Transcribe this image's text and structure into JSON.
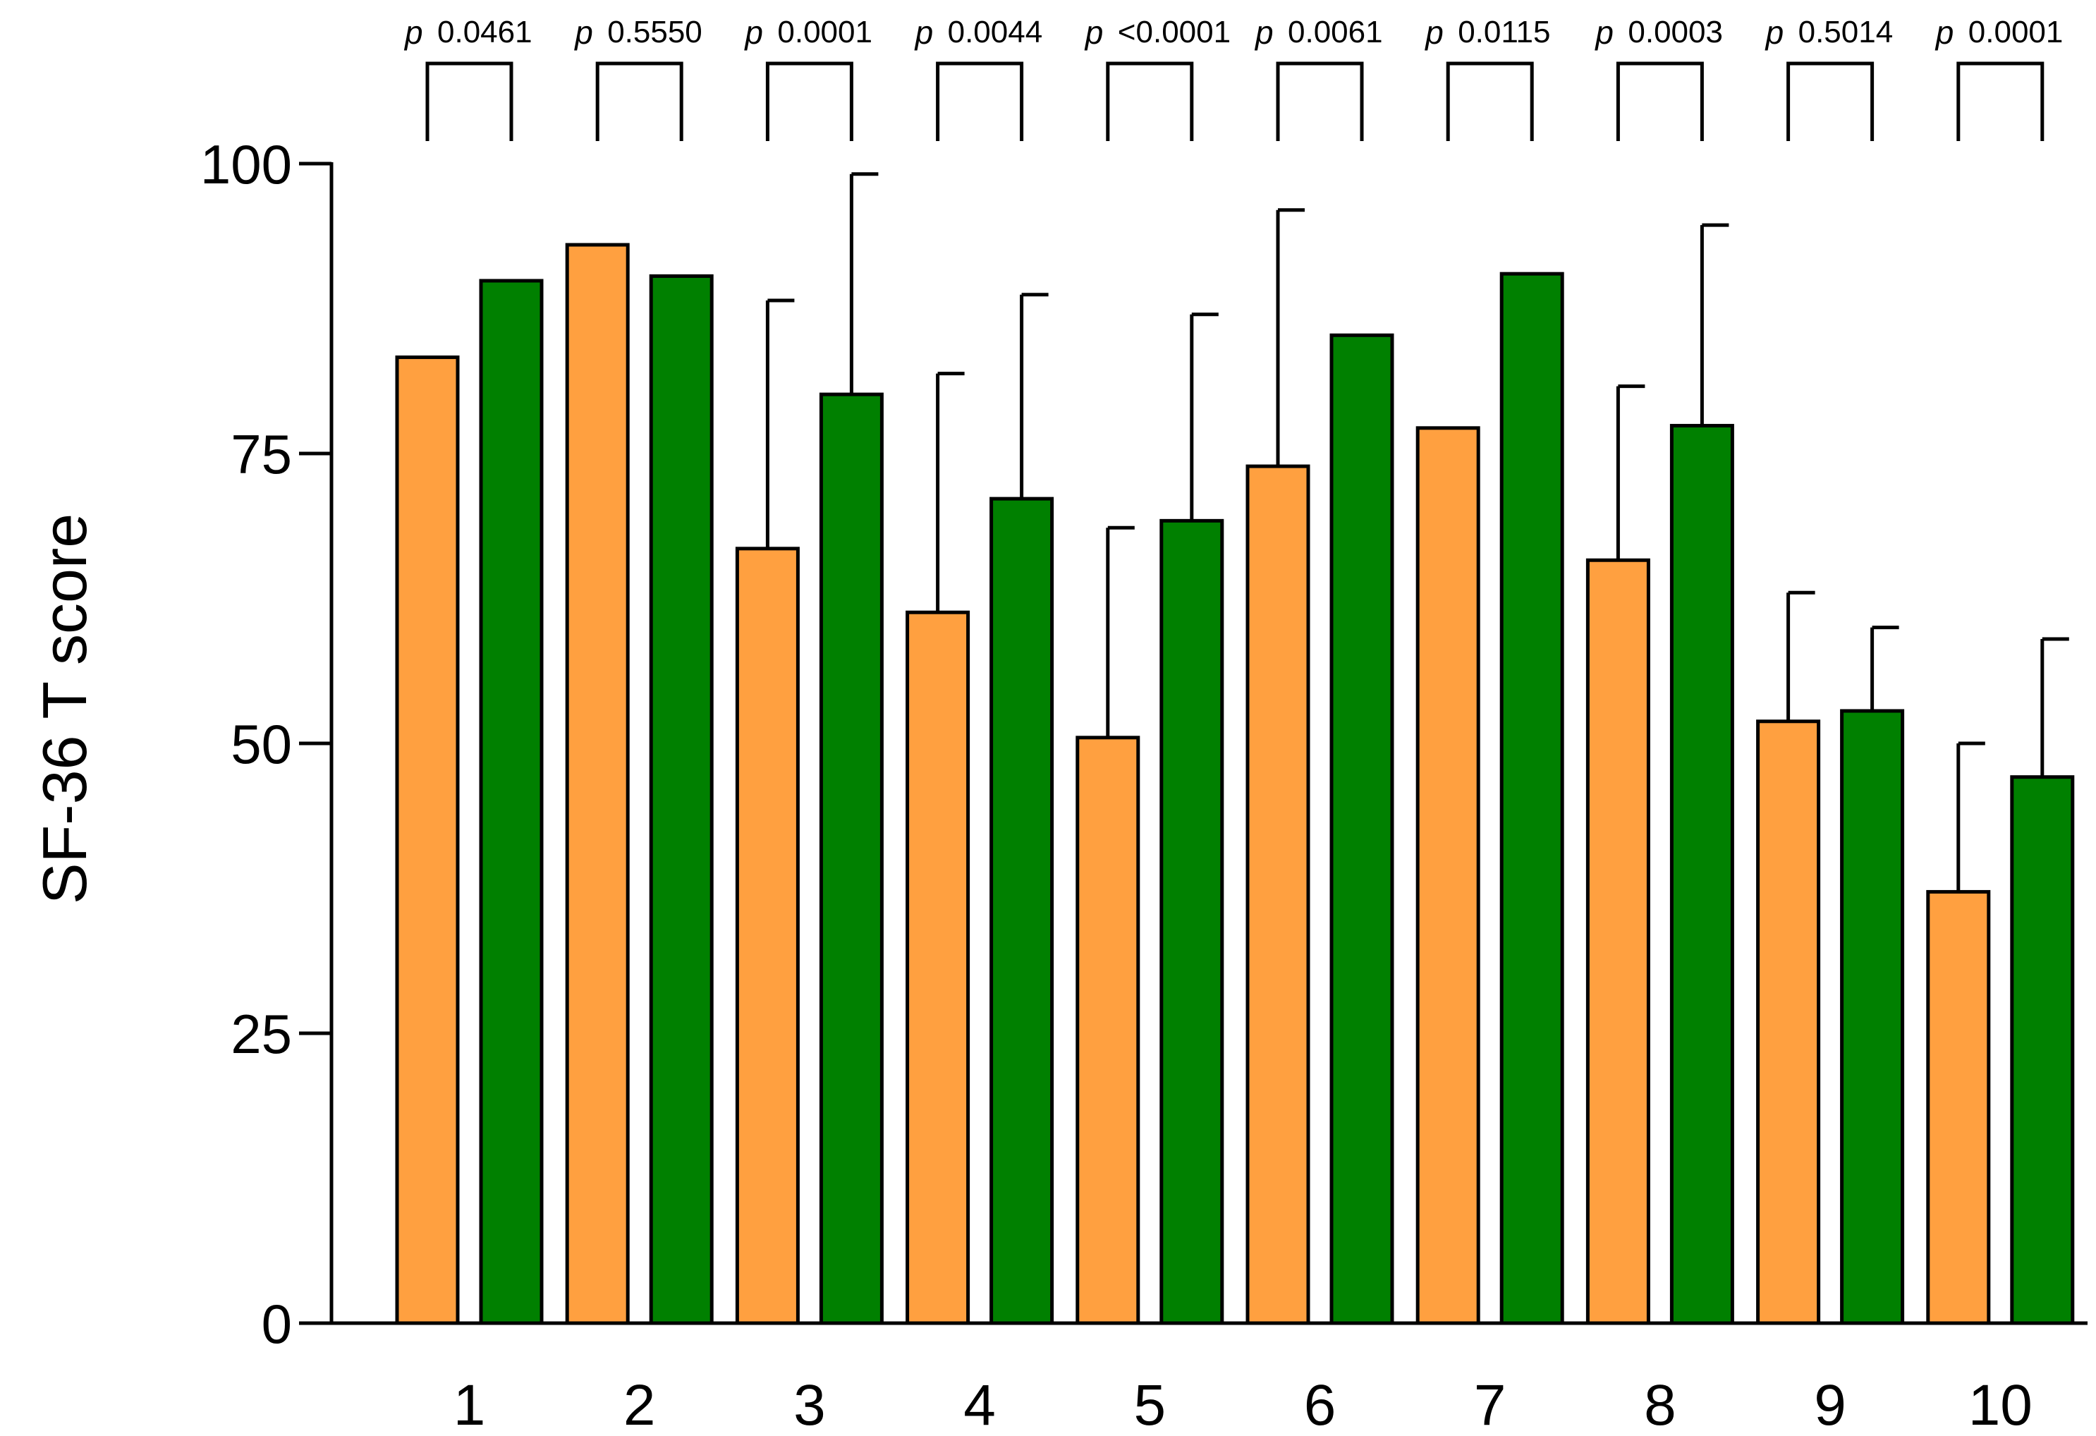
{
  "chart_data": {
    "type": "bar",
    "title": "",
    "xlabel": "",
    "ylabel": "SF-36 T score",
    "ylim": [
      0,
      100
    ],
    "yticks": [
      0,
      25,
      50,
      75,
      100
    ],
    "categories": [
      "1",
      "2",
      "3",
      "4",
      "5",
      "6",
      "7",
      "8",
      "9",
      "10"
    ],
    "series": [
      {
        "color": "#FFA040",
        "values": [
          83.3,
          93.0,
          66.8,
          61.3,
          50.5,
          73.9,
          77.2,
          65.8,
          51.9,
          37.2
        ],
        "error_plus": [
          null,
          null,
          21.4,
          20.6,
          18.1,
          22.1,
          null,
          15.0,
          11.1,
          12.8
        ]
      },
      {
        "color": "#008000",
        "values": [
          89.9,
          90.3,
          80.1,
          71.1,
          69.2,
          85.2,
          90.5,
          77.4,
          52.8,
          47.1
        ],
        "error_plus": [
          null,
          null,
          19.0,
          17.6,
          17.8,
          null,
          null,
          17.3,
          7.2,
          11.9
        ]
      }
    ],
    "comparisons": [
      {
        "p_symbol": "p",
        "p_value": "0.0461"
      },
      {
        "p_symbol": "p",
        "p_value": "0.5550"
      },
      {
        "p_symbol": "p",
        "p_value": "0.0001"
      },
      {
        "p_symbol": "p",
        "p_value": "0.0044"
      },
      {
        "p_symbol": "p",
        "p_value": "<0.0001"
      },
      {
        "p_symbol": "p",
        "p_value": "0.0061"
      },
      {
        "p_symbol": "p",
        "p_value": "0.0115"
      },
      {
        "p_symbol": "p",
        "p_value": "0.0003"
      },
      {
        "p_symbol": "p",
        "p_value": "0.5014"
      },
      {
        "p_symbol": "p",
        "p_value": "0.0001"
      }
    ],
    "grid": false,
    "legend": "none"
  }
}
